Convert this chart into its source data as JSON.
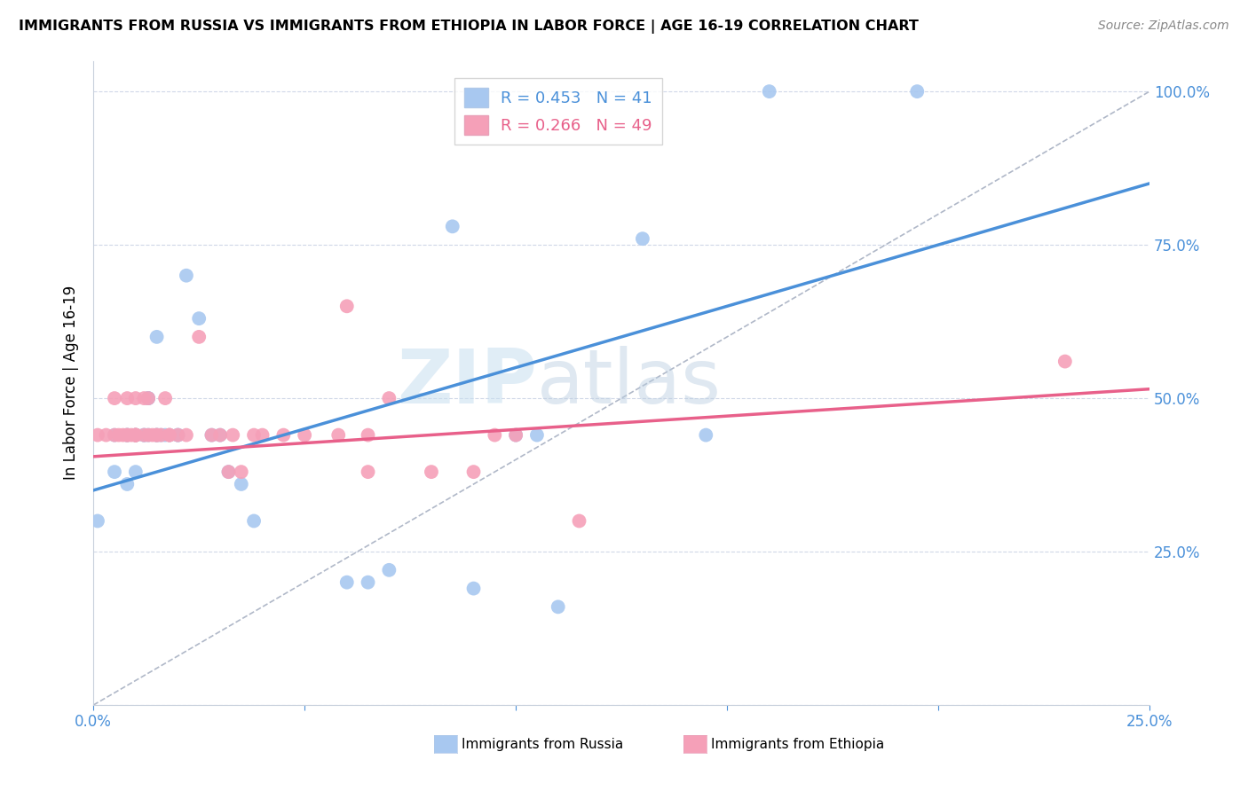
{
  "title": "IMMIGRANTS FROM RUSSIA VS IMMIGRANTS FROM ETHIOPIA IN LABOR FORCE | AGE 16-19 CORRELATION CHART",
  "source": "Source: ZipAtlas.com",
  "ylabel": "In Labor Force | Age 16-19",
  "xlim": [
    0.0,
    0.25
  ],
  "ylim": [
    0.0,
    1.05
  ],
  "russia_color": "#a8c8f0",
  "ethiopia_color": "#f5a0b8",
  "russia_R": 0.453,
  "russia_N": 41,
  "ethiopia_R": 0.266,
  "ethiopia_N": 49,
  "russia_line_color": "#4a90d9",
  "ethiopia_line_color": "#e8608a",
  "diagonal_color": "#b0b8c8",
  "watermark_zip": "ZIP",
  "watermark_atlas": "atlas",
  "russia_x": [
    0.001,
    0.005,
    0.005,
    0.008,
    0.008,
    0.008,
    0.01,
    0.01,
    0.01,
    0.012,
    0.012,
    0.013,
    0.013,
    0.013,
    0.015,
    0.015,
    0.015,
    0.016,
    0.017,
    0.018,
    0.02,
    0.02,
    0.022,
    0.025,
    0.028,
    0.03,
    0.032,
    0.035,
    0.038,
    0.06,
    0.065,
    0.07,
    0.085,
    0.09,
    0.1,
    0.105,
    0.11,
    0.13,
    0.145,
    0.16,
    0.195
  ],
  "russia_y": [
    0.3,
    0.44,
    0.38,
    0.44,
    0.44,
    0.36,
    0.44,
    0.44,
    0.38,
    0.44,
    0.44,
    0.44,
    0.5,
    0.5,
    0.44,
    0.44,
    0.6,
    0.44,
    0.44,
    0.44,
    0.44,
    0.44,
    0.7,
    0.63,
    0.44,
    0.44,
    0.38,
    0.36,
    0.3,
    0.2,
    0.2,
    0.22,
    0.78,
    0.19,
    0.44,
    0.44,
    0.16,
    0.76,
    0.44,
    1.0,
    1.0
  ],
  "ethiopia_x": [
    0.001,
    0.003,
    0.005,
    0.005,
    0.006,
    0.007,
    0.008,
    0.008,
    0.008,
    0.009,
    0.01,
    0.01,
    0.01,
    0.01,
    0.01,
    0.012,
    0.012,
    0.013,
    0.013,
    0.014,
    0.015,
    0.015,
    0.016,
    0.017,
    0.018,
    0.018,
    0.02,
    0.022,
    0.025,
    0.028,
    0.03,
    0.032,
    0.033,
    0.035,
    0.038,
    0.04,
    0.045,
    0.05,
    0.058,
    0.06,
    0.065,
    0.065,
    0.07,
    0.08,
    0.09,
    0.095,
    0.1,
    0.115,
    0.23
  ],
  "ethiopia_y": [
    0.44,
    0.44,
    0.5,
    0.44,
    0.44,
    0.44,
    0.5,
    0.44,
    0.44,
    0.44,
    0.5,
    0.44,
    0.44,
    0.44,
    0.44,
    0.44,
    0.5,
    0.5,
    0.44,
    0.44,
    0.44,
    0.44,
    0.44,
    0.5,
    0.44,
    0.44,
    0.44,
    0.44,
    0.6,
    0.44,
    0.44,
    0.38,
    0.44,
    0.38,
    0.44,
    0.44,
    0.44,
    0.44,
    0.44,
    0.65,
    0.38,
    0.44,
    0.5,
    0.38,
    0.38,
    0.44,
    0.44,
    0.3,
    0.56
  ]
}
